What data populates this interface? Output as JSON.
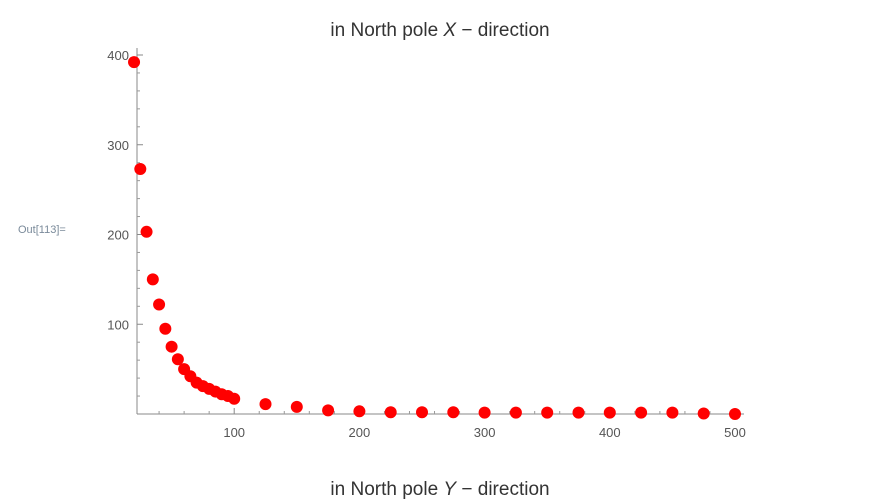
{
  "cell": {
    "out_label": "Out[113]="
  },
  "chart_data": [
    {
      "type": "scatter",
      "title": {
        "prefix": "in North pole ",
        "var": "X",
        "suffix": " − direction"
      },
      "x_ticks": [
        "100",
        "200",
        "300",
        "400",
        "500"
      ],
      "y_ticks": [
        "100",
        "200",
        "300",
        "400"
      ],
      "xlim": [
        15,
        505
      ],
      "ylim": [
        0,
        410
      ],
      "marker_color": "#ff0000",
      "series": [
        {
          "x": [
            20,
            25,
            30,
            35,
            40,
            45,
            50,
            55,
            60,
            65,
            70,
            75,
            80,
            85,
            90,
            95,
            100,
            125,
            150,
            175,
            200,
            225,
            250,
            275,
            300,
            325,
            350,
            375,
            400,
            425,
            450,
            475,
            500
          ],
          "y": [
            392,
            273,
            203,
            150,
            122,
            95,
            75,
            61,
            50,
            42,
            35,
            31,
            28,
            25,
            22,
            20,
            17,
            11,
            8,
            4,
            3,
            2,
            2,
            2,
            1.5,
            1.5,
            1.5,
            1.5,
            1.5,
            1.5,
            1.5,
            0.5,
            0
          ]
        }
      ]
    },
    {
      "type": "scatter",
      "title": {
        "prefix": "in North pole ",
        "var": "Y",
        "suffix": " − direction"
      }
    }
  ]
}
